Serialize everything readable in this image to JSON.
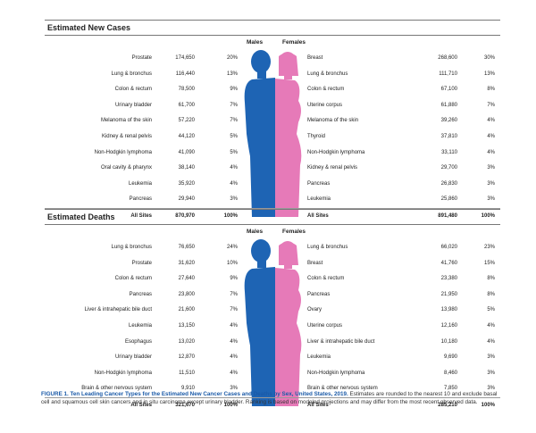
{
  "new_cases": {
    "title": "Estimated New Cases",
    "males_label": "Males",
    "females_label": "Females",
    "males": [
      {
        "site": "Prostate",
        "count": "174,650",
        "pct": "20%"
      },
      {
        "site": "Lung & bronchus",
        "count": "116,440",
        "pct": "13%"
      },
      {
        "site": "Colon & rectum",
        "count": "78,500",
        "pct": "9%"
      },
      {
        "site": "Urinary bladder",
        "count": "61,700",
        "pct": "7%"
      },
      {
        "site": "Melanoma of the skin",
        "count": "57,220",
        "pct": "7%"
      },
      {
        "site": "Kidney & renal pelvis",
        "count": "44,120",
        "pct": "5%"
      },
      {
        "site": "Non-Hodgkin lymphoma",
        "count": "41,090",
        "pct": "5%"
      },
      {
        "site": "Oral cavity & pharynx",
        "count": "38,140",
        "pct": "4%"
      },
      {
        "site": "Leukemia",
        "count": "35,920",
        "pct": "4%"
      },
      {
        "site": "Pancreas",
        "count": "29,940",
        "pct": "3%"
      }
    ],
    "males_total": {
      "site": "All Sites",
      "count": "870,970",
      "pct": "100%"
    },
    "females": [
      {
        "site": "Breast",
        "count": "268,600",
        "pct": "30%"
      },
      {
        "site": "Lung & bronchus",
        "count": "111,710",
        "pct": "13%"
      },
      {
        "site": "Colon & rectum",
        "count": "67,100",
        "pct": "8%"
      },
      {
        "site": "Uterine corpus",
        "count": "61,880",
        "pct": "7%"
      },
      {
        "site": "Melanoma of the skin",
        "count": "39,260",
        "pct": "4%"
      },
      {
        "site": "Thyroid",
        "count": "37,810",
        "pct": "4%"
      },
      {
        "site": "Non-Hodgkin lymphoma",
        "count": "33,110",
        "pct": "4%"
      },
      {
        "site": "Kidney & renal pelvis",
        "count": "29,700",
        "pct": "3%"
      },
      {
        "site": "Pancreas",
        "count": "26,830",
        "pct": "3%"
      },
      {
        "site": "Leukemia",
        "count": "25,860",
        "pct": "3%"
      }
    ],
    "females_total": {
      "site": "All Sites",
      "count": "891,480",
      "pct": "100%"
    }
  },
  "deaths": {
    "title": "Estimated Deaths",
    "males_label": "Males",
    "females_label": "Females",
    "males": [
      {
        "site": "Lung & bronchus",
        "count": "76,650",
        "pct": "24%"
      },
      {
        "site": "Prostate",
        "count": "31,620",
        "pct": "10%"
      },
      {
        "site": "Colon & rectum",
        "count": "27,640",
        "pct": "9%"
      },
      {
        "site": "Pancreas",
        "count": "23,800",
        "pct": "7%"
      },
      {
        "site": "Liver & intrahepatic bile duct",
        "count": "21,600",
        "pct": "7%"
      },
      {
        "site": "Leukemia",
        "count": "13,150",
        "pct": "4%"
      },
      {
        "site": "Esophagus",
        "count": "13,020",
        "pct": "4%"
      },
      {
        "site": "Urinary bladder",
        "count": "12,870",
        "pct": "4%"
      },
      {
        "site": "Non-Hodgkin lymphoma",
        "count": "11,510",
        "pct": "4%"
      },
      {
        "site": "Brain & other nervous system",
        "count": "9,910",
        "pct": "3%"
      }
    ],
    "males_total": {
      "site": "All Sites",
      "count": "321,670",
      "pct": "100%"
    },
    "females": [
      {
        "site": "Lung & bronchus",
        "count": "66,020",
        "pct": "23%"
      },
      {
        "site": "Breast",
        "count": "41,760",
        "pct": "15%"
      },
      {
        "site": "Colon & rectum",
        "count": "23,380",
        "pct": "8%"
      },
      {
        "site": "Pancreas",
        "count": "21,950",
        "pct": "8%"
      },
      {
        "site": "Ovary",
        "count": "13,980",
        "pct": "5%"
      },
      {
        "site": "Uterine corpus",
        "count": "12,160",
        "pct": "4%"
      },
      {
        "site": "Liver & intrahepatic bile duct",
        "count": "10,180",
        "pct": "4%"
      },
      {
        "site": "Leukemia",
        "count": "9,690",
        "pct": "3%"
      },
      {
        "site": "Non-Hodgkin lymphoma",
        "count": "8,460",
        "pct": "3%"
      },
      {
        "site": "Brain & other nervous system",
        "count": "7,850",
        "pct": "3%"
      }
    ],
    "females_total": {
      "site": "All Sites",
      "count": "285,210",
      "pct": "100%"
    }
  },
  "caption": {
    "label": "FIGURE 1. Ten Leading Cancer Types for the Estimated New Cancer Cases and Deaths by Sex, United States, 2019.",
    "text": "Estimates are rounded to the nearest 10 and exclude basal cell and squamous cell skin cancers and in situ carcinoma except urinary bladder. Ranking is based on modeled projections and may differ from the most recent observed data."
  },
  "colors": {
    "male": "#1e64b4",
    "female": "#e67ab8"
  }
}
